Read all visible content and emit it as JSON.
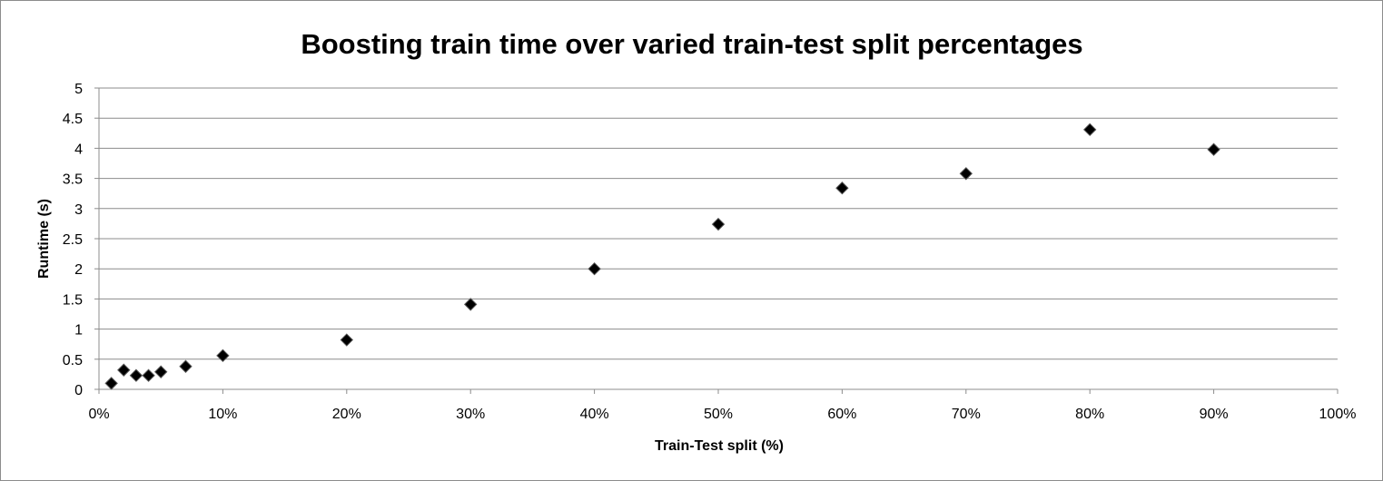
{
  "chart_data": {
    "type": "scatter",
    "title": "Boosting train time over varied train-test split percentages",
    "xlabel": "Train-Test split (%)",
    "ylabel": "Runtime (s)",
    "xlim": [
      0,
      100
    ],
    "ylim": [
      0,
      5
    ],
    "x_ticks": [
      0,
      10,
      20,
      30,
      40,
      50,
      60,
      70,
      80,
      90,
      100
    ],
    "x_tick_labels": [
      "0%",
      "10%",
      "20%",
      "30%",
      "40%",
      "50%",
      "60%",
      "70%",
      "80%",
      "90%",
      "100%"
    ],
    "y_ticks": [
      0,
      0.5,
      1,
      1.5,
      2,
      2.5,
      3,
      3.5,
      4,
      4.5,
      5
    ],
    "y_tick_labels": [
      "0",
      "0.5",
      "1",
      "1.5",
      "2",
      "2.5",
      "3",
      "3.5",
      "4",
      "4.5",
      "5"
    ],
    "grid": "horizontal",
    "legend": "none",
    "marker": "diamond",
    "marker_color": "#000000",
    "gridline_color": "#8c8c8c",
    "series": [
      {
        "x": [
          1,
          2,
          3,
          4,
          5,
          7,
          10,
          20,
          30,
          40,
          50,
          60,
          70,
          80,
          90
        ],
        "y": [
          0.1,
          0.32,
          0.23,
          0.23,
          0.29,
          0.38,
          0.56,
          0.82,
          1.41,
          2.0,
          2.74,
          3.34,
          3.58,
          4.31,
          3.98
        ]
      }
    ]
  }
}
